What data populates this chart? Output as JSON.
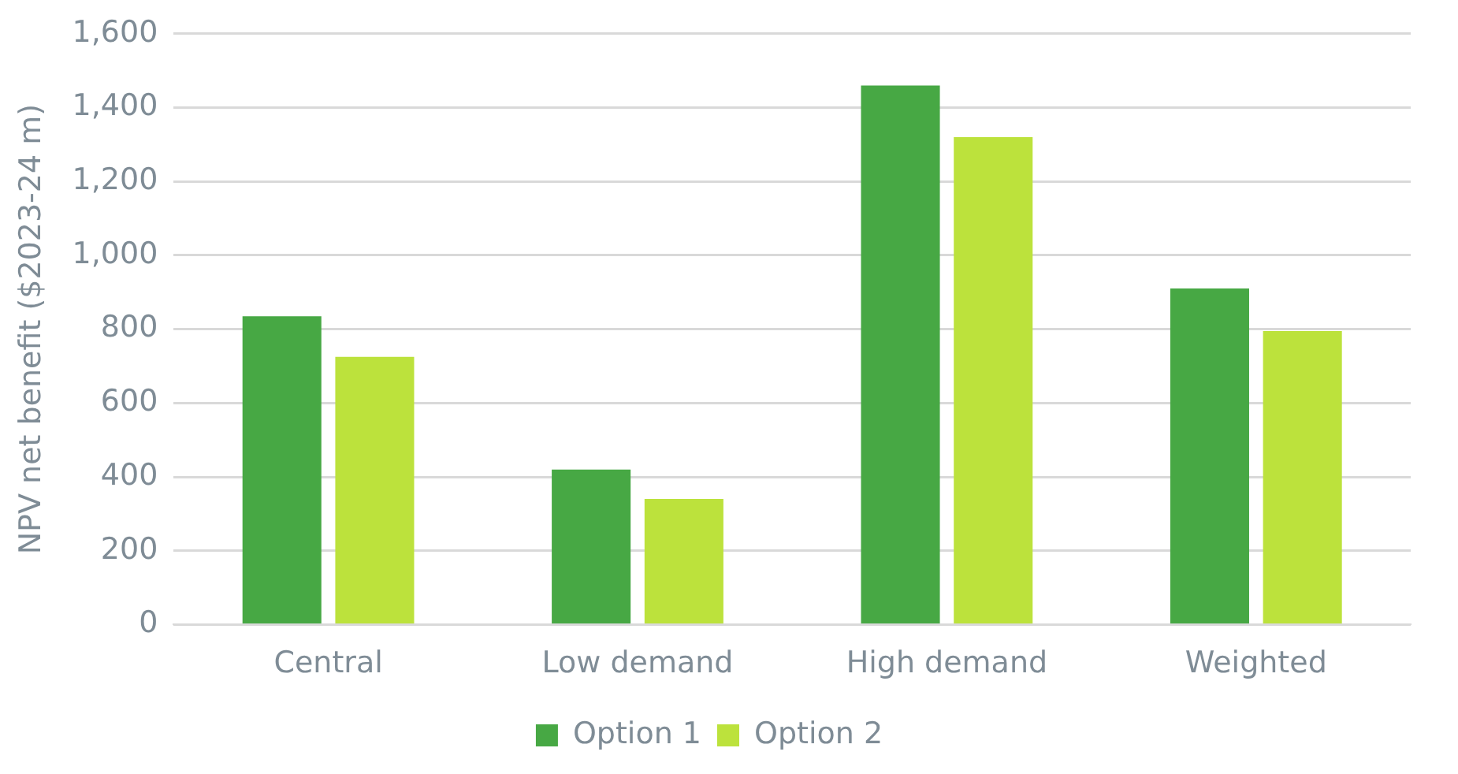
{
  "chart_data": {
    "type": "bar",
    "ylabel": "NPV net benefit ($2023-24 m)",
    "categories": [
      "Central",
      "Low demand",
      "High demand",
      "Weighted"
    ],
    "series": [
      {
        "name": "Option 1",
        "color": "#47a844",
        "values": [
          835,
          420,
          1460,
          910
        ]
      },
      {
        "name": "Option 2",
        "color": "#bce23c",
        "values": [
          725,
          340,
          1320,
          795
        ]
      }
    ],
    "ylim": [
      0,
      1600
    ],
    "yticks": [
      0,
      200,
      400,
      600,
      800,
      {
        "value": 1000,
        "label": "1,000"
      },
      {
        "value": 1200,
        "label": "1,200"
      },
      {
        "value": 1400,
        "label": "1,400"
      },
      {
        "value": 1600,
        "label": "1,600"
      }
    ],
    "grid": "y",
    "legend": "bottom"
  }
}
